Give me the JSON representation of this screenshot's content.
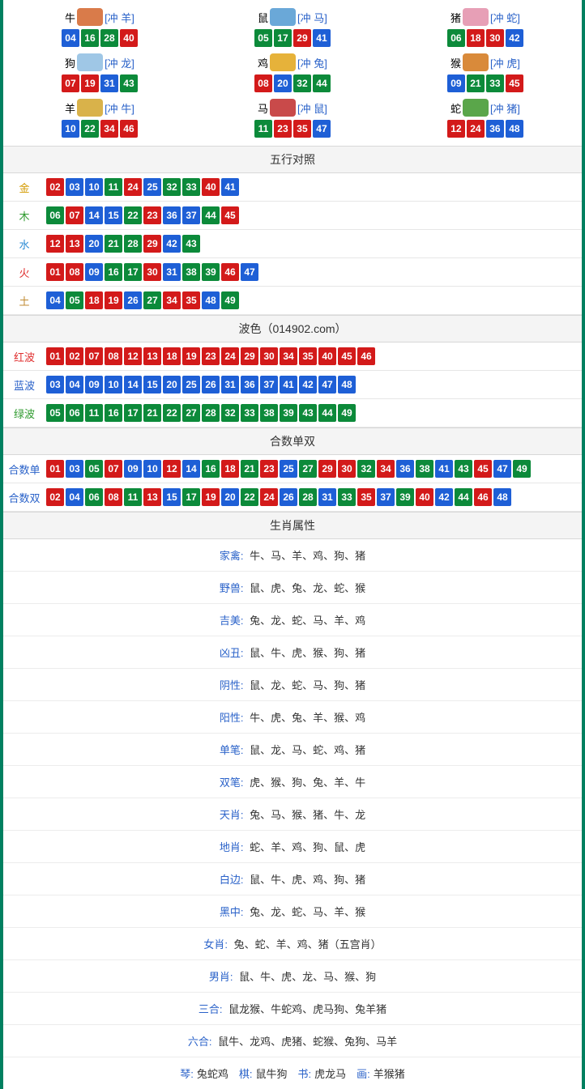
{
  "colors": {
    "red": "#d31a1a",
    "blue": "#1e5fd6",
    "green": "#0c8a3a",
    "border": "#008060"
  },
  "ballColorMap": {
    "01": "red",
    "02": "red",
    "07": "red",
    "08": "red",
    "12": "red",
    "13": "red",
    "18": "red",
    "19": "red",
    "23": "red",
    "24": "red",
    "29": "red",
    "30": "red",
    "34": "red",
    "35": "red",
    "40": "red",
    "45": "red",
    "46": "red",
    "03": "blue",
    "04": "blue",
    "09": "blue",
    "10": "blue",
    "14": "blue",
    "15": "blue",
    "20": "blue",
    "25": "blue",
    "26": "blue",
    "31": "blue",
    "36": "blue",
    "37": "blue",
    "41": "blue",
    "42": "blue",
    "47": "blue",
    "48": "blue",
    "05": "green",
    "06": "green",
    "11": "green",
    "16": "green",
    "17": "green",
    "21": "green",
    "22": "green",
    "27": "green",
    "28": "green",
    "32": "green",
    "33": "green",
    "38": "green",
    "39": "green",
    "43": "green",
    "44": "green",
    "49": "green"
  },
  "zodiac": [
    {
      "name": "牛",
      "clash": "[冲 羊]",
      "iconColor": "#d97b4a",
      "balls": [
        "04",
        "16",
        "28",
        "40"
      ]
    },
    {
      "name": "鼠",
      "clash": "[冲 马]",
      "iconColor": "#6aa8d8",
      "balls": [
        "05",
        "17",
        "29",
        "41"
      ]
    },
    {
      "name": "猪",
      "clash": "[冲 蛇]",
      "iconColor": "#e79fb6",
      "balls": [
        "06",
        "18",
        "30",
        "42"
      ]
    },
    {
      "name": "狗",
      "clash": "[冲 龙]",
      "iconColor": "#9fc7e6",
      "balls": [
        "07",
        "19",
        "31",
        "43"
      ]
    },
    {
      "name": "鸡",
      "clash": "[冲 兔]",
      "iconColor": "#e6b23a",
      "balls": [
        "08",
        "20",
        "32",
        "44"
      ]
    },
    {
      "name": "猴",
      "clash": "[冲 虎]",
      "iconColor": "#d98a3a",
      "balls": [
        "09",
        "21",
        "33",
        "45"
      ]
    },
    {
      "name": "羊",
      "clash": "[冲 牛]",
      "iconColor": "#d9b24a",
      "balls": [
        "10",
        "22",
        "34",
        "46"
      ]
    },
    {
      "name": "马",
      "clash": "[冲 鼠]",
      "iconColor": "#c94a4a",
      "balls": [
        "11",
        "23",
        "35",
        "47"
      ]
    },
    {
      "name": "蛇",
      "clash": "[冲 猪]",
      "iconColor": "#5aa64a",
      "balls": [
        "12",
        "24",
        "36",
        "48"
      ]
    }
  ],
  "wuxing": {
    "header": "五行对照",
    "rows": [
      {
        "label": "金",
        "labelClass": "l-金",
        "balls": [
          "02",
          "03",
          "10",
          "11",
          "24",
          "25",
          "32",
          "33",
          "40",
          "41"
        ]
      },
      {
        "label": "木",
        "labelClass": "l-木",
        "balls": [
          "06",
          "07",
          "14",
          "15",
          "22",
          "23",
          "36",
          "37",
          "44",
          "45"
        ]
      },
      {
        "label": "水",
        "labelClass": "l-水",
        "balls": [
          "12",
          "13",
          "20",
          "21",
          "28",
          "29",
          "42",
          "43"
        ]
      },
      {
        "label": "火",
        "labelClass": "l-火",
        "balls": [
          "01",
          "08",
          "09",
          "16",
          "17",
          "30",
          "31",
          "38",
          "39",
          "46",
          "47"
        ]
      },
      {
        "label": "土",
        "labelClass": "l-土",
        "balls": [
          "04",
          "05",
          "18",
          "19",
          "26",
          "27",
          "34",
          "35",
          "48",
          "49"
        ]
      }
    ]
  },
  "bose": {
    "header": "波色（014902.com）",
    "rows": [
      {
        "label": "红波",
        "labelClass": "l-红波",
        "balls": [
          "01",
          "02",
          "07",
          "08",
          "12",
          "13",
          "18",
          "19",
          "23",
          "24",
          "29",
          "30",
          "34",
          "35",
          "40",
          "45",
          "46"
        ]
      },
      {
        "label": "蓝波",
        "labelClass": "l-蓝波",
        "balls": [
          "03",
          "04",
          "09",
          "10",
          "14",
          "15",
          "20",
          "25",
          "26",
          "31",
          "36",
          "37",
          "41",
          "42",
          "47",
          "48"
        ]
      },
      {
        "label": "绿波",
        "labelClass": "l-绿波",
        "balls": [
          "05",
          "06",
          "11",
          "16",
          "17",
          "21",
          "22",
          "27",
          "28",
          "32",
          "33",
          "38",
          "39",
          "43",
          "44",
          "49"
        ]
      }
    ]
  },
  "heshu": {
    "header": "合数单双",
    "rows": [
      {
        "label": "合数单",
        "labelClass": "l-合数单",
        "balls": [
          "01",
          "03",
          "05",
          "07",
          "09",
          "10",
          "12",
          "14",
          "16",
          "18",
          "21",
          "23",
          "25",
          "27",
          "29",
          "30",
          "32",
          "34",
          "36",
          "38",
          "41",
          "43",
          "45",
          "47",
          "49"
        ]
      },
      {
        "label": "合数双",
        "labelClass": "l-合数双",
        "balls": [
          "02",
          "04",
          "06",
          "08",
          "11",
          "13",
          "15",
          "17",
          "19",
          "20",
          "22",
          "24",
          "26",
          "28",
          "31",
          "33",
          "35",
          "37",
          "39",
          "40",
          "42",
          "44",
          "46",
          "48"
        ]
      }
    ]
  },
  "shuxing": {
    "header": "生肖属性",
    "rows": [
      {
        "key": "家禽",
        "value": "牛、马、羊、鸡、狗、猪"
      },
      {
        "key": "野兽",
        "value": "鼠、虎、兔、龙、蛇、猴"
      },
      {
        "key": "吉美",
        "value": "兔、龙、蛇、马、羊、鸡"
      },
      {
        "key": "凶丑",
        "value": "鼠、牛、虎、猴、狗、猪"
      },
      {
        "key": "阴性",
        "value": "鼠、龙、蛇、马、狗、猪"
      },
      {
        "key": "阳性",
        "value": "牛、虎、兔、羊、猴、鸡"
      },
      {
        "key": "单笔",
        "value": "鼠、龙、马、蛇、鸡、猪"
      },
      {
        "key": "双笔",
        "value": "虎、猴、狗、兔、羊、牛"
      },
      {
        "key": "天肖",
        "value": "兔、马、猴、猪、牛、龙"
      },
      {
        "key": "地肖",
        "value": "蛇、羊、鸡、狗、鼠、虎"
      },
      {
        "key": "白边",
        "value": "鼠、牛、虎、鸡、狗、猪"
      },
      {
        "key": "黑中",
        "value": "兔、龙、蛇、马、羊、猴"
      },
      {
        "key": "女肖",
        "value": "兔、蛇、羊、鸡、猪（五宫肖）"
      },
      {
        "key": "男肖",
        "value": "鼠、牛、虎、龙、马、猴、狗"
      },
      {
        "key": "三合",
        "value": "鼠龙猴、牛蛇鸡、虎马狗、兔羊猪"
      },
      {
        "key": "六合",
        "value": "鼠牛、龙鸡、虎猪、蛇猴、兔狗、马羊"
      }
    ],
    "footer": [
      {
        "key": "琴",
        "value": "兔蛇鸡"
      },
      {
        "key": "棋",
        "value": "鼠牛狗"
      },
      {
        "key": "书",
        "value": "虎龙马"
      },
      {
        "key": "画",
        "value": "羊猴猪"
      }
    ]
  }
}
